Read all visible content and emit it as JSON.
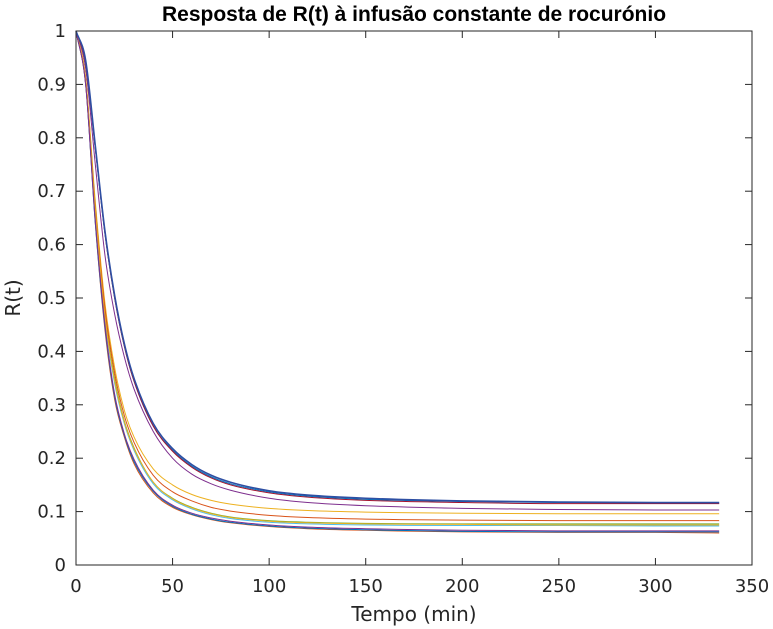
{
  "chart_data": {
    "type": "line",
    "title": "Resposta de R(t) à infusão constante de rocurónio",
    "xlabel": "Tempo (min)",
    "ylabel": "R(t)",
    "xlim": [
      0,
      350
    ],
    "ylim": [
      0,
      1
    ],
    "xticks": [
      "0",
      "50",
      "100",
      "150",
      "200",
      "250",
      "300",
      "350"
    ],
    "yticks": [
      "0",
      "0.1",
      "0.2",
      "0.3",
      "0.4",
      "0.5",
      "0.6",
      "0.7",
      "0.8",
      "0.9",
      "1"
    ],
    "grid": false,
    "legend": "none",
    "x": [
      0,
      5,
      10,
      15,
      20,
      25,
      30,
      40,
      50,
      60,
      70,
      80,
      100,
      120,
      150,
      200,
      250,
      300,
      333
    ],
    "series": [
      {
        "color": "#0072BD",
        "values": [
          1.0,
          0.94,
          0.78,
          0.62,
          0.5,
          0.41,
          0.345,
          0.26,
          0.215,
          0.185,
          0.165,
          0.152,
          0.137,
          0.129,
          0.123,
          0.119,
          0.117,
          0.116,
          0.116
        ]
      },
      {
        "color": "#D95319",
        "values": [
          1.0,
          0.9,
          0.64,
          0.44,
          0.31,
          0.24,
          0.19,
          0.135,
          0.108,
          0.094,
          0.085,
          0.079,
          0.072,
          0.068,
          0.065,
          0.062,
          0.061,
          0.061,
          0.06
        ]
      },
      {
        "color": "#EDB120",
        "values": [
          1.0,
          0.91,
          0.68,
          0.49,
          0.37,
          0.29,
          0.24,
          0.18,
          0.15,
          0.132,
          0.121,
          0.114,
          0.106,
          0.102,
          0.099,
          0.097,
          0.096,
          0.096,
          0.096
        ]
      },
      {
        "color": "#7E2F8E",
        "values": [
          1.0,
          0.93,
          0.75,
          0.58,
          0.47,
          0.39,
          0.33,
          0.25,
          0.2,
          0.17,
          0.152,
          0.14,
          0.125,
          0.117,
          0.111,
          0.106,
          0.104,
          0.103,
          0.103
        ]
      },
      {
        "color": "#77AC30",
        "values": [
          1.0,
          0.91,
          0.67,
          0.47,
          0.35,
          0.27,
          0.22,
          0.155,
          0.125,
          0.108,
          0.097,
          0.09,
          0.083,
          0.08,
          0.078,
          0.077,
          0.077,
          0.077,
          0.077
        ]
      },
      {
        "color": "#4DBEEE",
        "values": [
          1.0,
          0.91,
          0.66,
          0.46,
          0.34,
          0.265,
          0.215,
          0.152,
          0.122,
          0.105,
          0.094,
          0.087,
          0.08,
          0.077,
          0.075,
          0.074,
          0.074,
          0.073,
          0.073
        ]
      },
      {
        "color": "#A2142F",
        "values": [
          1.0,
          0.94,
          0.78,
          0.62,
          0.5,
          0.41,
          0.345,
          0.26,
          0.213,
          0.183,
          0.163,
          0.15,
          0.135,
          0.127,
          0.121,
          0.117,
          0.115,
          0.115,
          0.115
        ]
      },
      {
        "color": "#0072BD",
        "values": [
          1.0,
          0.9,
          0.64,
          0.445,
          0.315,
          0.243,
          0.194,
          0.138,
          0.11,
          0.095,
          0.086,
          0.08,
          0.073,
          0.069,
          0.066,
          0.063,
          0.062,
          0.062,
          0.062
        ]
      },
      {
        "color": "#D95319",
        "values": [
          1.0,
          0.91,
          0.67,
          0.48,
          0.36,
          0.28,
          0.23,
          0.168,
          0.137,
          0.12,
          0.108,
          0.101,
          0.093,
          0.089,
          0.086,
          0.084,
          0.083,
          0.083,
          0.083
        ]
      },
      {
        "color": "#EDB120",
        "values": [
          1.0,
          0.91,
          0.665,
          0.465,
          0.345,
          0.268,
          0.218,
          0.155,
          0.124,
          0.107,
          0.096,
          0.089,
          0.082,
          0.079,
          0.077,
          0.076,
          0.075,
          0.075,
          0.075
        ]
      },
      {
        "color": "#7E2F8E",
        "values": [
          1.0,
          0.9,
          0.645,
          0.45,
          0.32,
          0.246,
          0.198,
          0.14,
          0.112,
          0.097,
          0.088,
          0.082,
          0.075,
          0.071,
          0.068,
          0.065,
          0.064,
          0.064,
          0.064
        ]
      },
      {
        "color": "#2E4FA3",
        "values": [
          1.0,
          0.945,
          0.785,
          0.625,
          0.505,
          0.415,
          0.35,
          0.265,
          0.218,
          0.188,
          0.168,
          0.155,
          0.139,
          0.131,
          0.125,
          0.12,
          0.118,
          0.117,
          0.117
        ]
      }
    ]
  }
}
